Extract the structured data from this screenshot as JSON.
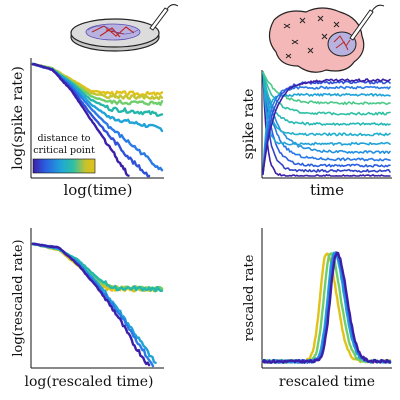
{
  "chart_data": [
    {
      "type": "line",
      "title": "",
      "xlabel": "log(time)",
      "ylabel": "log(spike rate)",
      "xscale": "log",
      "yscale": "log",
      "grid": false,
      "colormap": {
        "label": "distance to critical point",
        "label_lines": [
          "distance to",
          "critical point"
        ],
        "stops": [
          "#3b1fa8",
          "#2a5fe0",
          "#20a4d8",
          "#2fc0a4",
          "#c9c22a",
          "#e0c21a"
        ],
        "placement": "bottom-left"
      },
      "series": [
        {
          "color": "#e0c21a",
          "x": [
            0,
            0.15,
            0.3,
            0.45,
            0.6,
            1
          ],
          "y": [
            1,
            0.96,
            0.86,
            0.76,
            0.74,
            0.73
          ]
        },
        {
          "color": "#c4c532",
          "x": [
            0,
            0.15,
            0.3,
            0.45,
            0.6,
            1
          ],
          "y": [
            1,
            0.96,
            0.85,
            0.74,
            0.71,
            0.7
          ]
        },
        {
          "color": "#6fce6b",
          "x": [
            0,
            0.15,
            0.3,
            0.45,
            0.6,
            1
          ],
          "y": [
            1,
            0.96,
            0.84,
            0.71,
            0.66,
            0.65
          ]
        },
        {
          "color": "#25b8aa",
          "x": [
            0,
            0.15,
            0.3,
            0.45,
            0.6,
            1
          ],
          "y": [
            1,
            0.95,
            0.83,
            0.68,
            0.6,
            0.55
          ]
        },
        {
          "color": "#1fa3d8",
          "x": [
            0,
            0.15,
            0.3,
            0.45,
            0.6,
            1
          ],
          "y": [
            1,
            0.95,
            0.82,
            0.64,
            0.52,
            0.42
          ]
        },
        {
          "color": "#2a7be6",
          "x": [
            0,
            0.15,
            0.3,
            0.45,
            0.6,
            0.85,
            1
          ],
          "y": [
            1,
            0.95,
            0.8,
            0.6,
            0.43,
            0.2,
            0.05
          ]
        },
        {
          "color": "#3052d8",
          "x": [
            0,
            0.15,
            0.3,
            0.45,
            0.6,
            0.78,
            0.9
          ],
          "y": [
            1,
            0.95,
            0.78,
            0.55,
            0.35,
            0.12,
            0.0
          ]
        },
        {
          "color": "#3b1fa8",
          "x": [
            0,
            0.15,
            0.3,
            0.45,
            0.6,
            0.74
          ],
          "y": [
            1,
            0.95,
            0.76,
            0.5,
            0.25,
            0.0
          ]
        }
      ]
    },
    {
      "type": "line",
      "title": "",
      "xlabel": "time",
      "ylabel": "spike rate",
      "grid": false,
      "series": [
        {
          "color": "#3b1fa8",
          "level": 0.0
        },
        {
          "color": "#3342c4",
          "level": 0.05
        },
        {
          "color": "#2a5fe0",
          "level": 0.1
        },
        {
          "color": "#2878e6",
          "level": 0.16
        },
        {
          "color": "#2390e0",
          "level": 0.23
        },
        {
          "color": "#20a4d8",
          "level": 0.31
        },
        {
          "color": "#22b0cc",
          "level": 0.4
        },
        {
          "color": "#25b8b4",
          "level": 0.5
        },
        {
          "color": "#2fc0a4",
          "level": 0.6
        },
        {
          "color": "#4cc88a",
          "level": 0.7
        },
        {
          "color": "#1fa3d8",
          "level": 0.78
        },
        {
          "color": "#2a7be6",
          "level": 0.85
        },
        {
          "color": "#3052d8",
          "level": 0.9
        },
        {
          "color": "#3b1fa8",
          "level": 0.92
        }
      ]
    },
    {
      "type": "line",
      "title": "",
      "xlabel": "log(rescaled time)",
      "ylabel": "log(rescaled rate)",
      "xscale": "log",
      "yscale": "log",
      "grid": false,
      "series": [
        {
          "color": "#e0c21a",
          "x": [
            0,
            0.2,
            0.35,
            0.5,
            0.6,
            1
          ],
          "y": [
            1,
            0.95,
            0.82,
            0.66,
            0.63,
            0.63
          ]
        },
        {
          "color": "#c4c532",
          "x": [
            0,
            0.2,
            0.35,
            0.5,
            0.6,
            1
          ],
          "y": [
            1,
            0.95,
            0.84,
            0.68,
            0.64,
            0.63
          ]
        },
        {
          "color": "#6fce6b",
          "x": [
            0,
            0.2,
            0.35,
            0.5,
            0.6,
            1
          ],
          "y": [
            1,
            0.96,
            0.86,
            0.7,
            0.64,
            0.63
          ]
        },
        {
          "color": "#25b8aa",
          "x": [
            0,
            0.2,
            0.35,
            0.5,
            0.62,
            1
          ],
          "y": [
            1,
            0.96,
            0.87,
            0.72,
            0.64,
            0.63
          ]
        },
        {
          "color": "#1fa3d8",
          "x": [
            0,
            0.2,
            0.35,
            0.5,
            0.65,
            0.8,
            0.95
          ],
          "y": [
            1,
            0.96,
            0.85,
            0.68,
            0.48,
            0.25,
            0.02
          ]
        },
        {
          "color": "#2a7be6",
          "x": [
            0,
            0.2,
            0.35,
            0.5,
            0.65,
            0.8,
            0.93
          ],
          "y": [
            1,
            0.97,
            0.84,
            0.66,
            0.45,
            0.22,
            0.0
          ]
        },
        {
          "color": "#3b1fa8",
          "x": [
            0,
            0.2,
            0.35,
            0.5,
            0.65,
            0.78,
            0.9
          ],
          "y": [
            1,
            0.97,
            0.83,
            0.64,
            0.42,
            0.18,
            0.0
          ]
        }
      ]
    },
    {
      "type": "line",
      "title": "",
      "xlabel": "rescaled time",
      "ylabel": "rescaled rate",
      "grid": false,
      "series": [
        {
          "color": "#e0c21a",
          "peak_x": 0.5
        },
        {
          "color": "#6fce6b",
          "peak_x": 0.53
        },
        {
          "color": "#20a4d8",
          "peak_x": 0.56
        },
        {
          "color": "#2a7be6",
          "peak_x": 0.57
        },
        {
          "color": "#3b1fa8",
          "peak_x": 0.58
        }
      ]
    }
  ],
  "icons": {
    "culture": "petri-dish-with-neural-network",
    "brain": "brain-with-recording-electrode"
  }
}
